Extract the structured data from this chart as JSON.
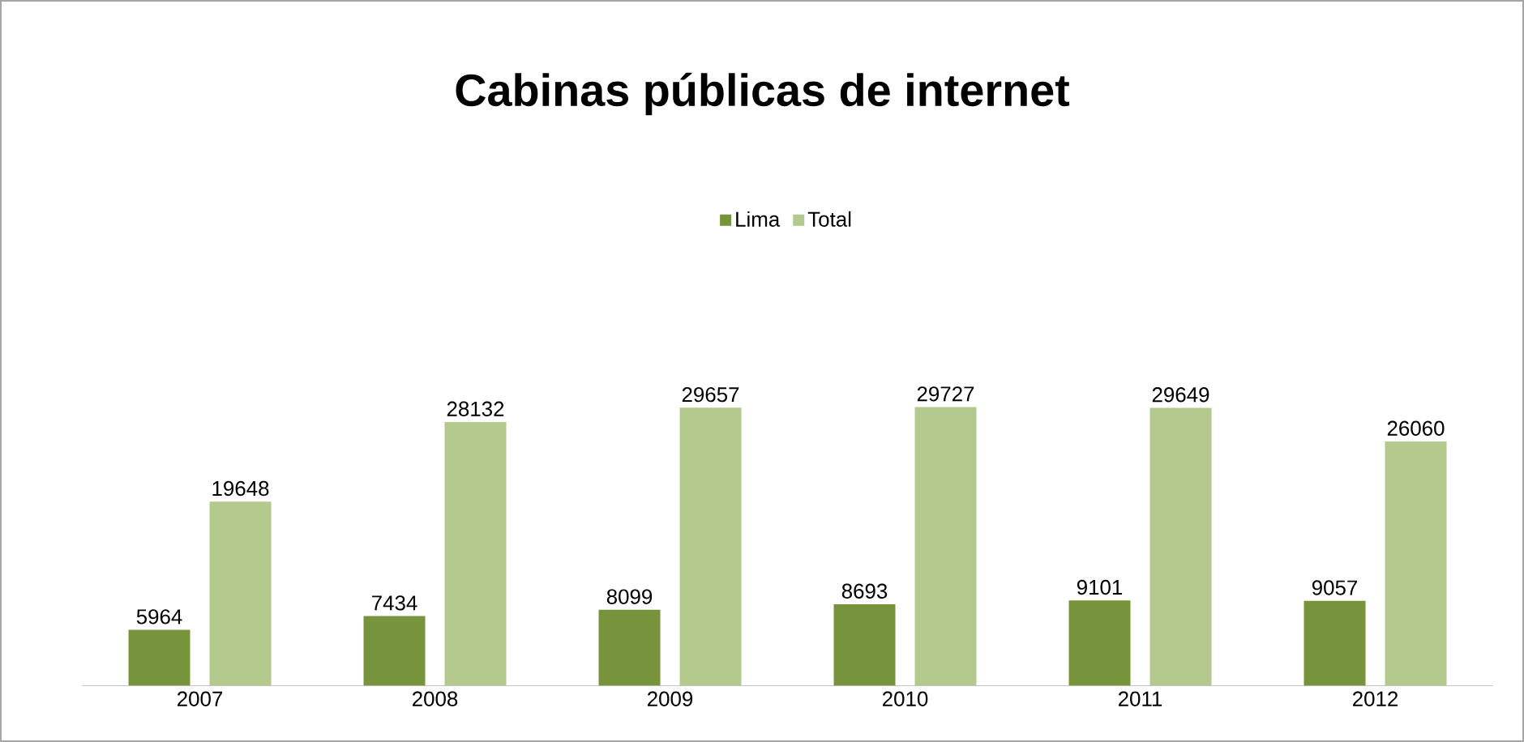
{
  "chart_data": {
    "type": "bar",
    "title": "Cabinas públicas de internet",
    "categories": [
      "2007",
      "2008",
      "2009",
      "2010",
      "2011",
      "2012"
    ],
    "series": [
      {
        "name": "Lima",
        "color": "#77933c",
        "values": [
          5964,
          7434,
          8099,
          8693,
          9101,
          9057
        ]
      },
      {
        "name": "Total",
        "color": "#b3c98d",
        "values": [
          19648,
          28132,
          29657,
          29727,
          29649,
          26060
        ]
      }
    ],
    "data_labels": true,
    "legend": "top",
    "tick_labels": "x"
  }
}
